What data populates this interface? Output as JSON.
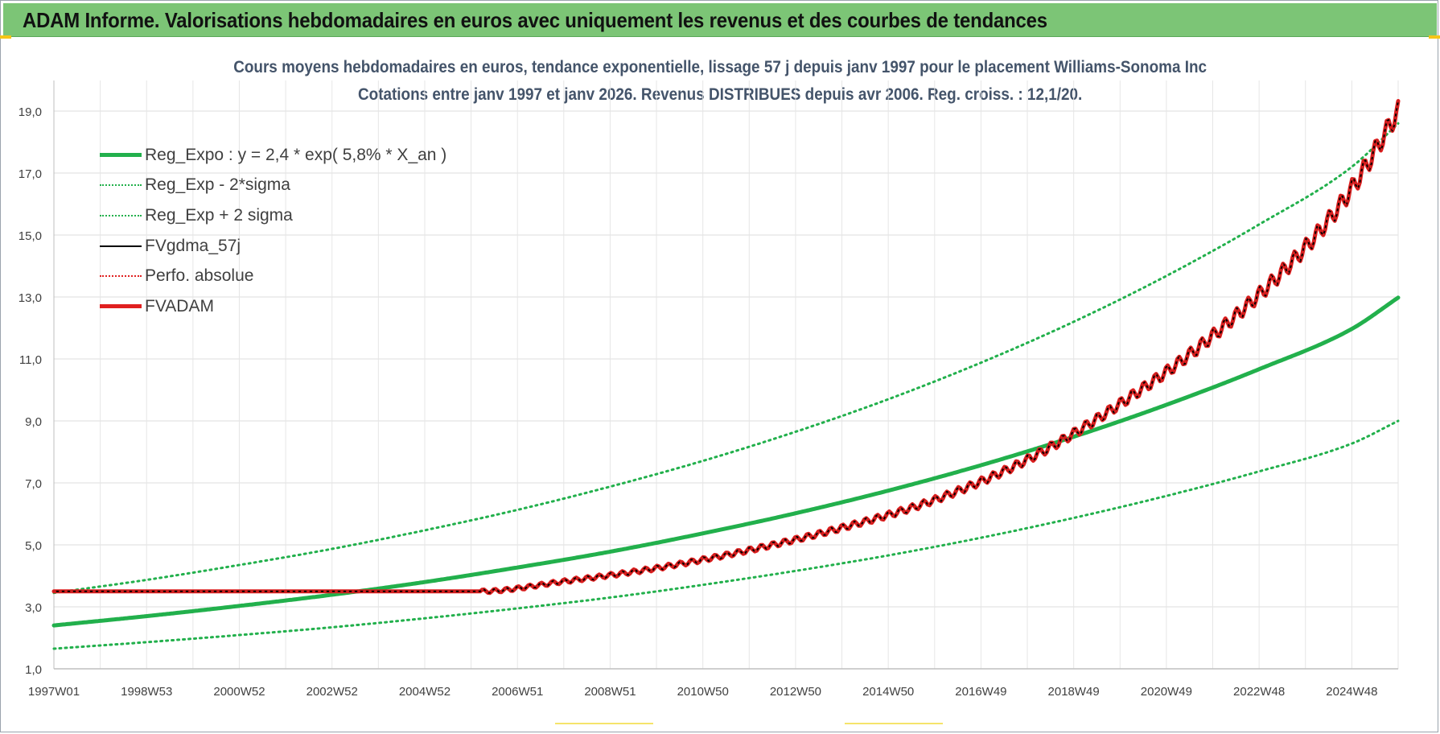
{
  "banner": {
    "title": "ADAM Informe. Valorisations hebdomadaires en euros avec uniquement les revenus et des courbes de tendances"
  },
  "chart_data": {
    "type": "line",
    "title_line1": "Cours moyens hebdomadaires en euros, tendance exponentielle, lissage 57 j depuis janv 1997 pour le placement Williams-Sonoma Inc",
    "title_line2": "Cotations entre janv 1997 et janv 2026. Revenus DISTRIBUES depuis avr 2006. Reg. croiss. : 12,1/20.",
    "xlabel": "",
    "ylabel": "",
    "x_range": [
      1997.0,
      2026.0
    ],
    "ylim": [
      1.0,
      20.0
    ],
    "y_ticks": [
      "1,0",
      "3,0",
      "5,0",
      "7,0",
      "9,0",
      "11,0",
      "13,0",
      "15,0",
      "17,0",
      "19,0"
    ],
    "y_tick_values": [
      1,
      3,
      5,
      7,
      9,
      11,
      13,
      15,
      17,
      19
    ],
    "x_ticks": [
      "1997W01",
      "1998W53",
      "2000W52",
      "2002W52",
      "2004W52",
      "2006W51",
      "2008W51",
      "2010W50",
      "2012W50",
      "2014W50",
      "2016W49",
      "2018W49",
      "2020W49",
      "2022W48",
      "2024W48"
    ],
    "grid": true,
    "legend_position": "top-left",
    "series": [
      {
        "name": "Reg_Expo : y = 2,4 * exp( 5,8% *  X_an )",
        "color": "#22b04c",
        "style": "solid",
        "width": 5,
        "x": [
          1997,
          1999,
          2001,
          2003,
          2005,
          2007,
          2009,
          2011,
          2013,
          2015,
          2017,
          2019,
          2021,
          2023,
          2025,
          2026
        ],
        "values": [
          2.4,
          2.7,
          3.03,
          3.39,
          3.8,
          4.27,
          4.78,
          5.37,
          6.02,
          6.75,
          7.57,
          8.49,
          9.52,
          10.67,
          11.97,
          12.98
        ]
      },
      {
        "name": "Reg_Exp - 2*sigma",
        "color": "#22b04c",
        "style": "dotted",
        "width": 3,
        "x": [
          1997,
          1999,
          2001,
          2003,
          2005,
          2007,
          2009,
          2011,
          2013,
          2015,
          2017,
          2019,
          2021,
          2023,
          2025,
          2026
        ],
        "values": [
          1.65,
          1.86,
          2.09,
          2.34,
          2.63,
          2.95,
          3.3,
          3.71,
          4.16,
          4.66,
          5.23,
          5.87,
          6.58,
          7.37,
          8.27,
          9.0
        ]
      },
      {
        "name": "Reg_Exp + 2 sigma",
        "color": "#22b04c",
        "style": "dotted",
        "width": 3,
        "x": [
          1997,
          1999,
          2001,
          2003,
          2005,
          2007,
          2009,
          2011,
          2013,
          2015,
          2017,
          2019,
          2021,
          2023,
          2025,
          2026
        ],
        "values": [
          3.45,
          3.87,
          4.35,
          4.87,
          5.47,
          6.13,
          6.88,
          7.71,
          8.65,
          9.7,
          10.88,
          12.2,
          13.68,
          15.34,
          17.2,
          18.6
        ]
      },
      {
        "name": "FVgdma_57j",
        "color": "#000000",
        "style": "solid",
        "width": 2,
        "x": [
          1997,
          2006.2,
          2008,
          2010,
          2012,
          2014,
          2016,
          2018,
          2020,
          2022,
          2024,
          2025,
          2026
        ],
        "values": [
          3.5,
          3.5,
          3.82,
          4.25,
          4.83,
          5.55,
          6.45,
          7.75,
          9.55,
          11.75,
          14.6,
          16.5,
          19.0
        ]
      },
      {
        "name": "Perfo. absolue",
        "color": "#e02020",
        "style": "dotted",
        "width": 2,
        "x": [
          1997,
          2006.2,
          2008,
          2010,
          2012,
          2014,
          2016,
          2018,
          2020,
          2022,
          2024,
          2025,
          2026
        ],
        "values": [
          3.5,
          3.5,
          3.82,
          4.25,
          4.83,
          5.55,
          6.45,
          7.75,
          9.55,
          11.75,
          14.6,
          16.5,
          19.0
        ]
      },
      {
        "name": "FVADAM",
        "color": "#e02020",
        "style": "solid",
        "width": 5,
        "x": [
          1997,
          2006.2,
          2008,
          2010,
          2012,
          2014,
          2016,
          2018,
          2020,
          2022,
          2024,
          2025,
          2026
        ],
        "values": [
          3.5,
          3.5,
          3.82,
          4.25,
          4.83,
          5.55,
          6.45,
          7.75,
          9.55,
          11.75,
          14.6,
          16.5,
          19.0
        ]
      }
    ]
  }
}
